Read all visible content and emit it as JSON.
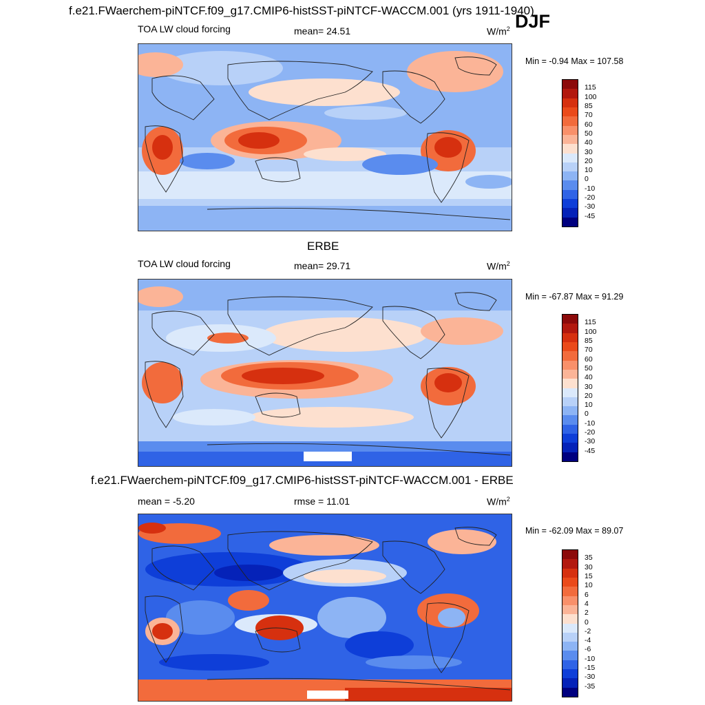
{
  "header": {
    "title": "f.e21.FWaerchem-piNTCF.f09_g17.CMIP6-histSST-piNTCF-WACCM.001 (yrs 1911-1940)",
    "season": "DJF"
  },
  "units": "W/m",
  "units_sup": "2",
  "panels": [
    {
      "variable": "TOA LW cloud forcing",
      "mean_label": "mean=  24.51",
      "minmax": "Min =  -0.94 Max = 107.58"
    },
    {
      "title": "ERBE",
      "variable": "TOA LW cloud forcing",
      "mean_label": "mean=  29.71",
      "minmax": "Min = -67.87 Max =  91.29"
    },
    {
      "title": "f.e21.FWaerchem-piNTCF.f09_g17.CMIP6-histSST-piNTCF-WACCM.001 - ERBE",
      "mean_label": "mean =  -5.20",
      "rmse_label": "rmse =  11.01",
      "minmax": "Min = -62.09 Max =  89.07"
    }
  ],
  "colorbar_abs": {
    "labels": [
      "115",
      "100",
      "85",
      "70",
      "60",
      "50",
      "40",
      "30",
      "20",
      "10",
      "0",
      "-10",
      "-20",
      "-30",
      "-45"
    ],
    "colors": [
      "#8c0a0a",
      "#b2180e",
      "#d6300f",
      "#ea4a1a",
      "#f26b3c",
      "#f9906a",
      "#fbb497",
      "#fde0cf",
      "#dbe9fb",
      "#b8d1f8",
      "#8db4f4",
      "#5a8cee",
      "#2f63e6",
      "#0e3ed8",
      "#0522b8",
      "#00007f"
    ]
  },
  "colorbar_diff": {
    "labels": [
      "35",
      "30",
      "15",
      "10",
      "6",
      "4",
      "2",
      "0",
      "-2",
      "-4",
      "-6",
      "-10",
      "-15",
      "-30",
      "-35"
    ],
    "colors": [
      "#8c0a0a",
      "#b2180e",
      "#d6300f",
      "#ea4a1a",
      "#f26b3c",
      "#f9906a",
      "#fbb497",
      "#fde0cf",
      "#dbe9fb",
      "#b8d1f8",
      "#8db4f4",
      "#5a8cee",
      "#2f63e6",
      "#0e3ed8",
      "#0522b8",
      "#00007f"
    ]
  },
  "chart_data": [
    {
      "type": "heatmap",
      "title": "f.e21.FWaerchem-piNTCF.f09_g17.CMIP6-histSST-piNTCF-WACCM.001 (yrs 1911-1940) DJF",
      "variable": "TOA LW cloud forcing",
      "units": "W/m2",
      "mean": 24.51,
      "min": -0.94,
      "max": 107.58,
      "colorbar_levels": [
        -45,
        -30,
        -20,
        -10,
        0,
        10,
        20,
        30,
        40,
        50,
        60,
        70,
        85,
        100,
        115
      ]
    },
    {
      "type": "heatmap",
      "title": "ERBE",
      "variable": "TOA LW cloud forcing",
      "units": "W/m2",
      "mean": 29.71,
      "min": -67.87,
      "max": 91.29,
      "colorbar_levels": [
        -45,
        -30,
        -20,
        -10,
        0,
        10,
        20,
        30,
        40,
        50,
        60,
        70,
        85,
        100,
        115
      ]
    },
    {
      "type": "heatmap",
      "title": "f.e21.FWaerchem-piNTCF.f09_g17.CMIP6-histSST-piNTCF-WACCM.001 - ERBE",
      "units": "W/m2",
      "mean": -5.2,
      "rmse": 11.01,
      "min": -62.09,
      "max": 89.07,
      "colorbar_levels": [
        -35,
        -30,
        -15,
        -10,
        -6,
        -4,
        -2,
        0,
        2,
        4,
        6,
        10,
        15,
        30,
        35
      ]
    }
  ]
}
